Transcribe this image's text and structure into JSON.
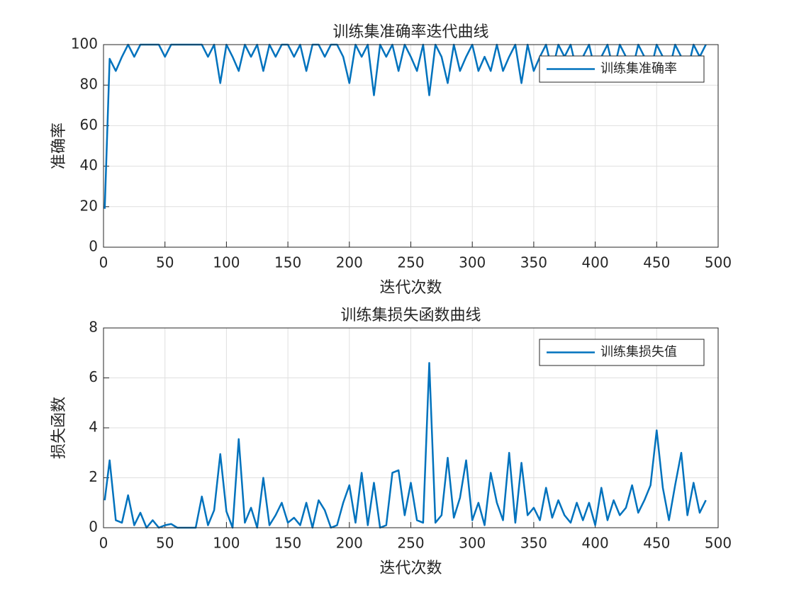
{
  "chart_data": [
    {
      "type": "line",
      "title": "训练集准确率迭代曲线",
      "xlabel": "迭代次数",
      "ylabel": "准确率",
      "x": [
        1,
        5,
        10,
        15,
        20,
        25,
        30,
        35,
        40,
        45,
        50,
        55,
        60,
        65,
        70,
        75,
        80,
        85,
        90,
        95,
        100,
        105,
        110,
        115,
        120,
        125,
        130,
        135,
        140,
        145,
        150,
        155,
        160,
        165,
        170,
        175,
        180,
        185,
        190,
        195,
        200,
        205,
        210,
        215,
        220,
        225,
        230,
        235,
        240,
        245,
        250,
        255,
        260,
        265,
        270,
        275,
        280,
        285,
        290,
        295,
        300,
        305,
        310,
        315,
        320,
        325,
        330,
        335,
        340,
        345,
        350,
        355,
        360,
        365,
        370,
        375,
        380,
        385,
        390,
        395,
        400,
        405,
        410,
        415,
        420,
        425,
        430,
        435,
        440,
        445,
        450,
        455,
        460,
        465,
        470,
        475,
        480,
        485,
        490
      ],
      "series": [
        {
          "name": "训练集准确率",
          "color": "#0072bd",
          "values": [
            19,
            93,
            87,
            94,
            100,
            94,
            100,
            100,
            100,
            100,
            94,
            100,
            100,
            100,
            100,
            100,
            100,
            94,
            100,
            81,
            100,
            94,
            87,
            100,
            94,
            100,
            87,
            100,
            94,
            100,
            100,
            94,
            100,
            87,
            100,
            100,
            94,
            100,
            100,
            94,
            81,
            100,
            94,
            100,
            75,
            100,
            94,
            100,
            87,
            100,
            94,
            87,
            100,
            75,
            100,
            94,
            81,
            100,
            87,
            94,
            100,
            87,
            94,
            87,
            100,
            87,
            94,
            100,
            81,
            100,
            87,
            94,
            100,
            87,
            100,
            94,
            100,
            87,
            94,
            100,
            87,
            94,
            100,
            87,
            100,
            94,
            87,
            100,
            94,
            87,
            100,
            94,
            87,
            100,
            94,
            87,
            100,
            94,
            100
          ]
        }
      ],
      "xlim": [
        0,
        500
      ],
      "xticks": [
        0,
        50,
        100,
        150,
        200,
        250,
        300,
        350,
        400,
        450,
        500
      ],
      "ylim": [
        0,
        100
      ],
      "yticks": [
        0,
        20,
        40,
        60,
        80,
        100
      ],
      "grid": true,
      "legend": "northeast"
    },
    {
      "type": "line",
      "title": "训练集损失函数曲线",
      "xlabel": "迭代次数",
      "ylabel": "损失函数",
      "x": [
        1,
        5,
        10,
        15,
        20,
        25,
        30,
        35,
        40,
        45,
        50,
        55,
        60,
        65,
        70,
        75,
        80,
        85,
        90,
        95,
        100,
        105,
        110,
        115,
        120,
        125,
        130,
        135,
        140,
        145,
        150,
        155,
        160,
        165,
        170,
        175,
        180,
        185,
        190,
        195,
        200,
        205,
        210,
        215,
        220,
        225,
        230,
        235,
        240,
        245,
        250,
        255,
        260,
        265,
        270,
        275,
        280,
        285,
        290,
        295,
        300,
        305,
        310,
        315,
        320,
        325,
        330,
        335,
        340,
        345,
        350,
        355,
        360,
        365,
        370,
        375,
        380,
        385,
        390,
        395,
        400,
        405,
        410,
        415,
        420,
        425,
        430,
        435,
        440,
        445,
        450,
        455,
        460,
        465,
        470,
        475,
        480,
        485,
        490
      ],
      "series": [
        {
          "name": "训练集损失值",
          "color": "#0072bd",
          "values": [
            1.1,
            2.7,
            0.3,
            0.2,
            1.3,
            0.1,
            0.6,
            0,
            0.3,
            0,
            0.1,
            0.15,
            0,
            0,
            0,
            0,
            1.25,
            0.1,
            0.7,
            2.95,
            0.65,
            0,
            3.55,
            0.2,
            0.8,
            0,
            2.0,
            0.1,
            0.5,
            1.0,
            0.2,
            0.4,
            0.1,
            1.0,
            0,
            1.1,
            0.7,
            0,
            0.1,
            1.0,
            1.7,
            0.2,
            2.2,
            0.1,
            1.8,
            0,
            0.1,
            2.2,
            2.3,
            0.5,
            1.8,
            0.3,
            0.2,
            6.6,
            0.2,
            0.5,
            2.8,
            0.4,
            1.2,
            2.7,
            0.3,
            1.0,
            0.1,
            2.2,
            1.0,
            0.3,
            3.0,
            0.2,
            2.6,
            0.5,
            0.8,
            0.3,
            1.6,
            0.4,
            1.1,
            0.5,
            0.2,
            1.0,
            0.3,
            1.0,
            0.1,
            1.6,
            0.3,
            1.1,
            0.5,
            0.8,
            1.7,
            0.6,
            1.1,
            1.7,
            3.9,
            1.6,
            0.3,
            1.7,
            3.0,
            0.5,
            1.8,
            0.6,
            1.1
          ]
        }
      ],
      "xlim": [
        0,
        500
      ],
      "xticks": [
        0,
        50,
        100,
        150,
        200,
        250,
        300,
        350,
        400,
        450,
        500
      ],
      "ylim": [
        0,
        8
      ],
      "yticks": [
        0,
        2,
        4,
        6,
        8
      ],
      "grid": true,
      "legend": "northeast"
    }
  ]
}
